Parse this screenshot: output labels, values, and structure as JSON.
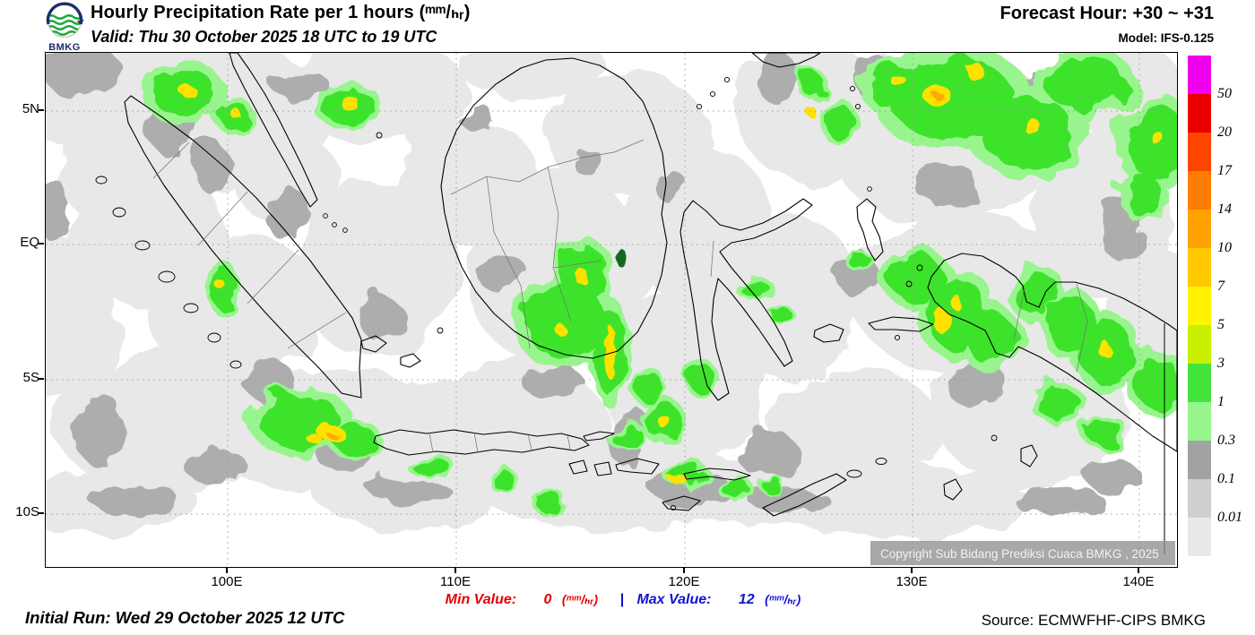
{
  "header": {
    "logo_text": "BMKG",
    "title": "Hourly Precipitation Rate per 1 hours (ᵐᵐ/ₕᵣ)",
    "valid": "Valid: Thu 30 October 2025 18 UTC to 19 UTC",
    "forecast_hour": "Forecast Hour: +30 ~ +31",
    "model": "Model: IFS-0.125"
  },
  "map": {
    "lat_labels": [
      "5N",
      "EQ",
      "5S",
      "10S"
    ],
    "lon_labels": [
      "100E",
      "110E",
      "120E",
      "130E",
      "140E"
    ],
    "copyright": "Copyright Sub Bidang Prediksi Cuaca BMKG , 2025"
  },
  "legend": {
    "labels": [
      "50",
      "20",
      "17",
      "14",
      "10",
      "7",
      "5",
      "3",
      "1",
      "0.3",
      "0.1",
      "0.01"
    ],
    "colors": [
      "#ee00ee",
      "#e80000",
      "#ff4600",
      "#ff7d00",
      "#ffa200",
      "#ffc800",
      "#fff300",
      "#c8f000",
      "#42e43c",
      "#96f58c",
      "#a2a2a2",
      "#cfcfcf",
      "#e9e9e9"
    ]
  },
  "footer": {
    "min_label": "Min Value:",
    "min_value": "0",
    "min_unit": "(ᵐᵐ/ₕᵣ)",
    "separator": "|",
    "max_label": "Max Value:",
    "max_value": "12",
    "max_unit": "(ᵐᵐ/ₕᵣ)",
    "initial_run": "Initial Run: Wed 29 October 2025 12 UTC",
    "source": "Source: ECMWFHF-CIPS BMKG"
  }
}
